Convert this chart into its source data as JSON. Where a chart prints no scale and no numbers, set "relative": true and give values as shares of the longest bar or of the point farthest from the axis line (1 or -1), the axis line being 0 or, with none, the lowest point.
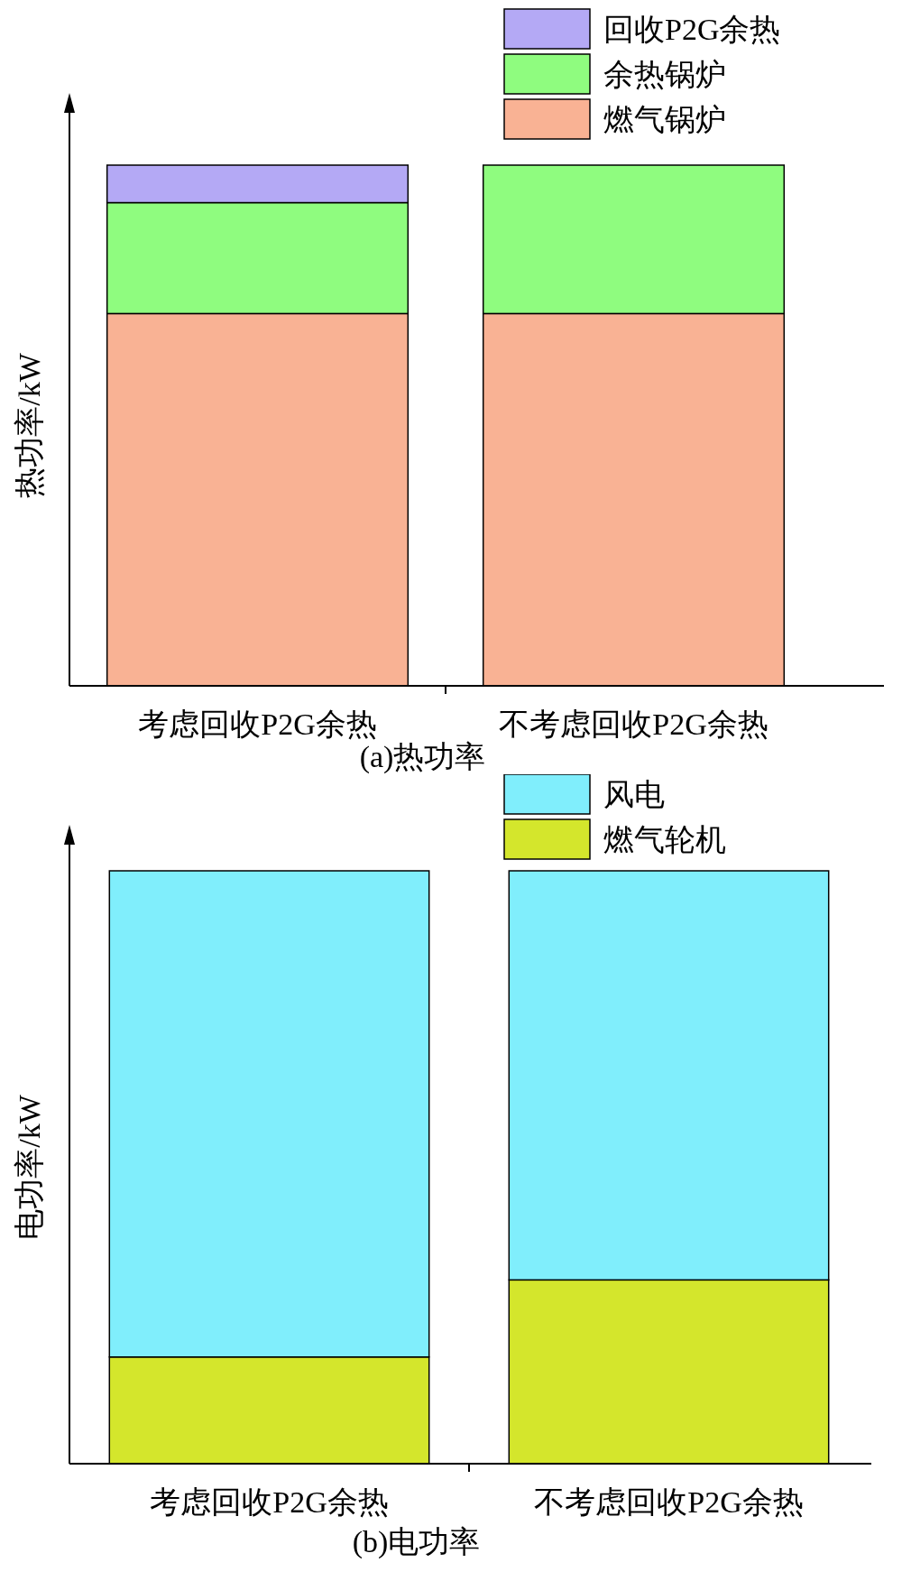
{
  "chart_data": [
    {
      "type": "bar",
      "title": "(a)热功率",
      "ylabel": "热功率/kW",
      "categories": [
        "考虑回收P2G余热",
        "不考虑回收P2G余热"
      ],
      "stacked": true,
      "relative": true,
      "legend": "top right",
      "series": [
        {
          "name": "燃气锅炉",
          "color": "#f9b294",
          "values": [
            0.715,
            0.715
          ]
        },
        {
          "name": "余热锅炉",
          "color": "#8ffc7f",
          "values": [
            0.213,
            0.285
          ]
        },
        {
          "name": "回收P2G余热",
          "color": "#b4a9f5",
          "values": [
            0.072,
            0
          ]
        }
      ]
    },
    {
      "type": "bar",
      "title": "(b)电功率",
      "ylabel": "电功率/kW",
      "categories": [
        "考虑回收P2G余热",
        "不考虑回收P2G余热"
      ],
      "stacked": true,
      "relative": true,
      "legend": "top right",
      "series": [
        {
          "name": "燃气轮机",
          "color": "#d4e62c",
          "values": [
            0.18,
            0.31
          ]
        },
        {
          "name": "风电",
          "color": "#80eefc",
          "values": [
            0.82,
            0.69
          ]
        }
      ]
    }
  ]
}
